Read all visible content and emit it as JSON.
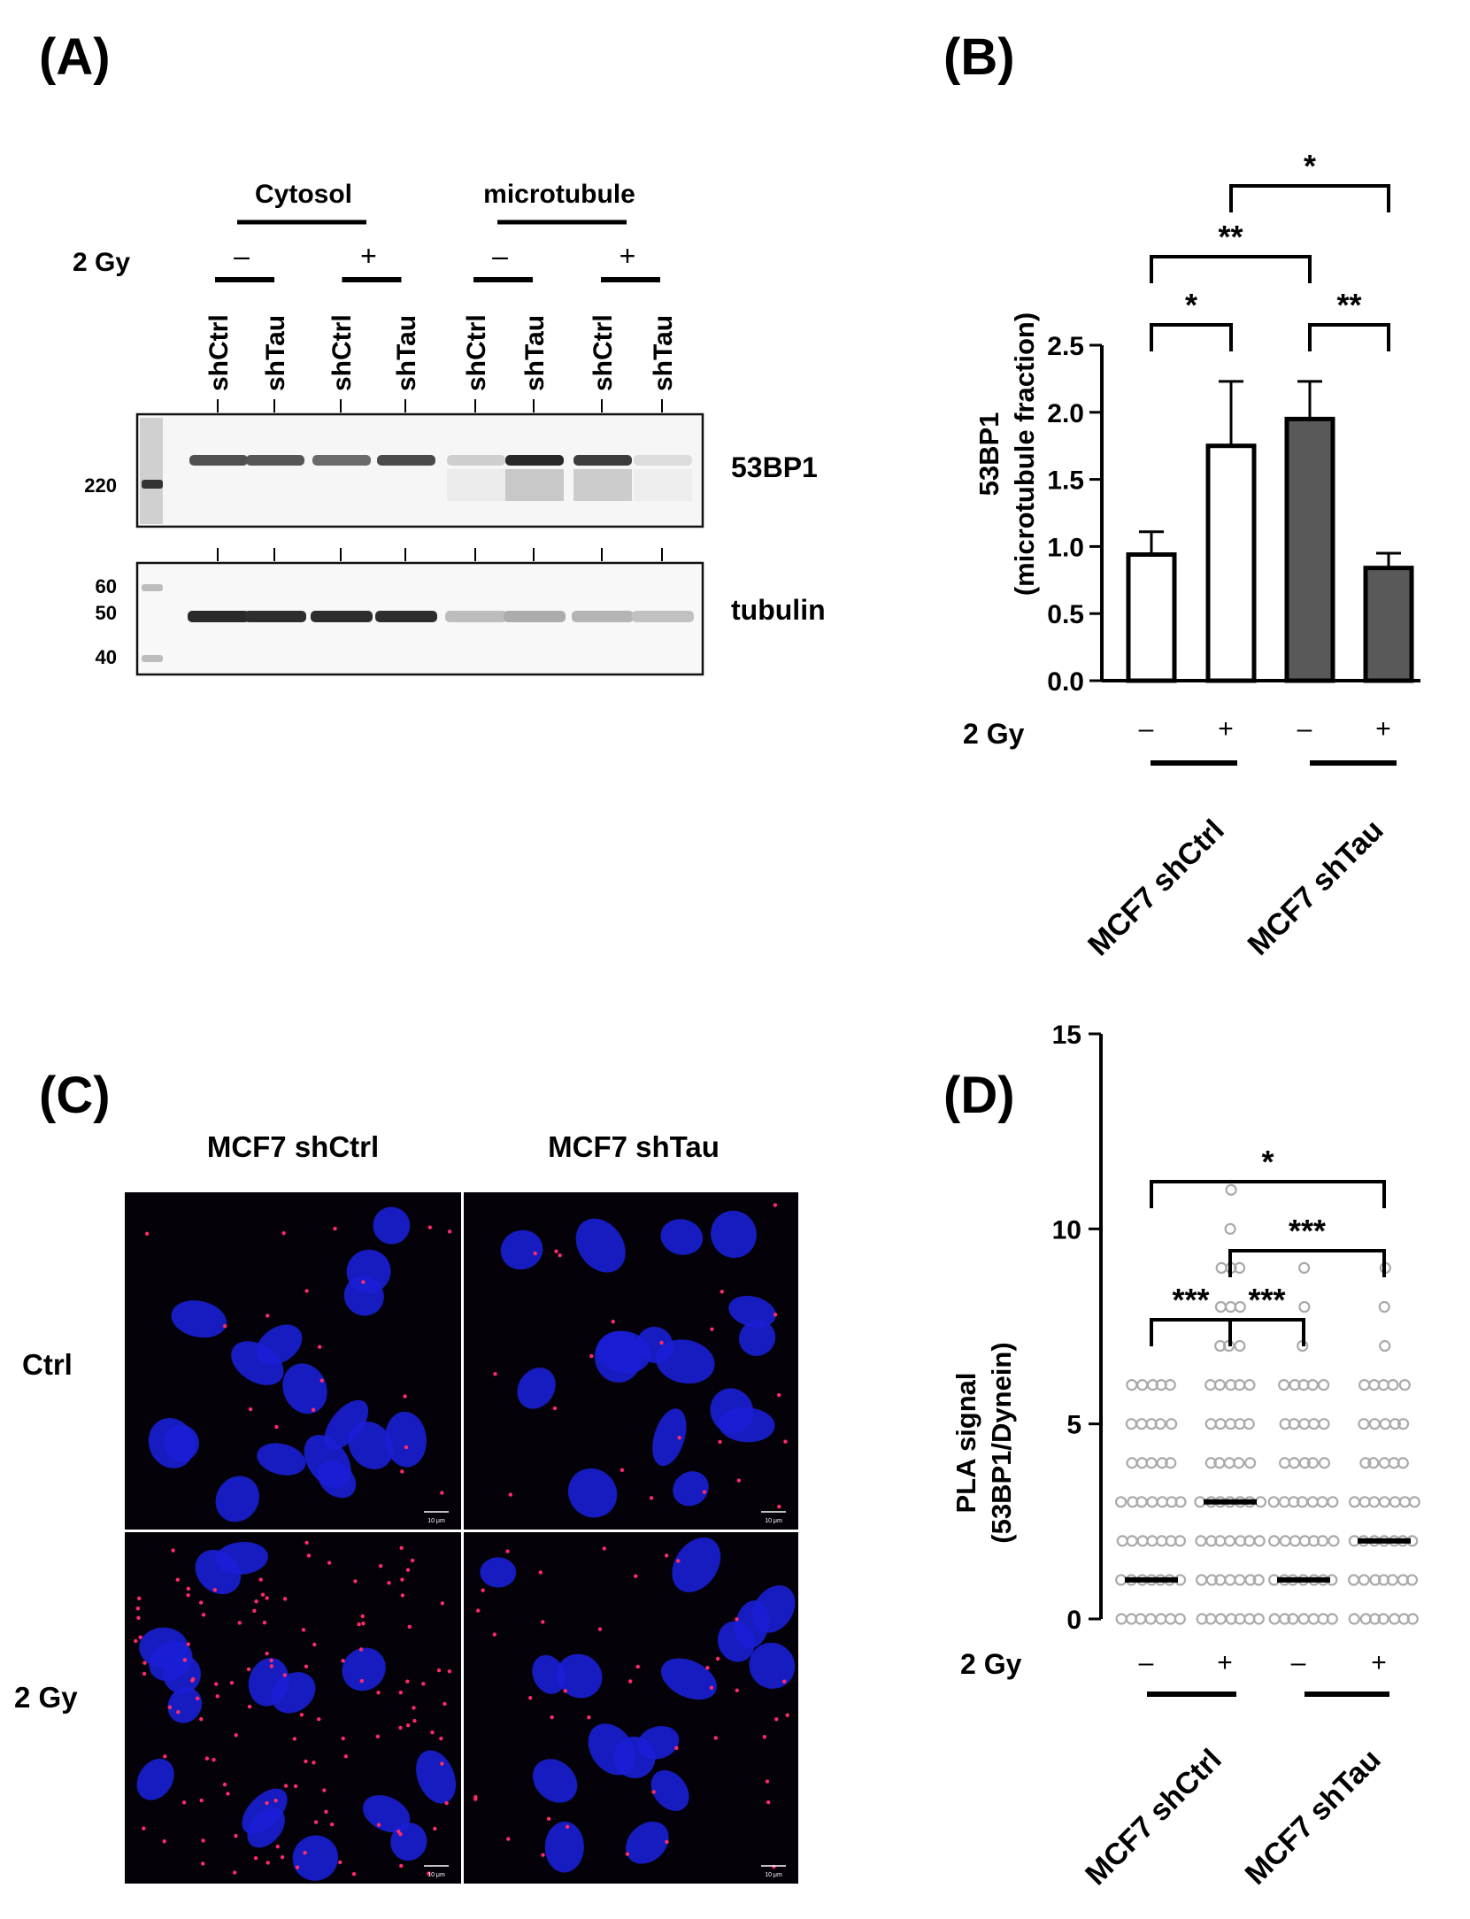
{
  "panels": {
    "A": {
      "label": "(A)",
      "group_cytosol": "Cytosol",
      "group_microtubule": "microtubule",
      "dose_label": "2 Gy",
      "dose_signs": [
        "–",
        "+",
        "–",
        "+"
      ],
      "lanes": [
        "shCtrl",
        "shTau",
        "shCtrl",
        "shTau",
        "shCtrl",
        "shTau",
        "shCtrl",
        "shTau"
      ],
      "blot_top_label": "53BP1",
      "blot_bottom_label": "tubulin",
      "marker_top": [
        "220"
      ],
      "marker_bottom": [
        "60",
        "50",
        "40"
      ],
      "band_intensity_53bp1": [
        0.75,
        0.72,
        0.62,
        0.78,
        0.12,
        0.95,
        0.85,
        0.05
      ],
      "band_intensity_tubulin": [
        0.92,
        0.9,
        0.9,
        0.9,
        0.22,
        0.3,
        0.26,
        0.2
      ]
    },
    "B": {
      "label": "(B)",
      "ylabel_line1": "53BP1",
      "ylabel_line2": "(microtubule fraction)",
      "dose_label": "2 Gy",
      "dose_signs": [
        "–",
        "+",
        "–",
        "+"
      ],
      "group_labels": [
        "MCF7 shCtrl",
        "MCF7 shTau"
      ],
      "significance": [
        {
          "from": 0,
          "to": 1,
          "stars": "*"
        },
        {
          "from": 2,
          "to": 3,
          "stars": "**"
        },
        {
          "from": 0,
          "to": 2,
          "stars": "**"
        },
        {
          "from": 1,
          "to": 3,
          "stars": "*"
        }
      ]
    },
    "C": {
      "label": "(C)",
      "col_labels": [
        "MCF7 shCtrl",
        "MCF7 shTau"
      ],
      "row_labels": [
        "Ctrl",
        "2 Gy"
      ],
      "scale_bar": "10 μm",
      "nucleus_color": "#1a1fd6",
      "pla_dot_color": "#ff2a6a",
      "background_color": "#040208"
    },
    "D": {
      "label": "(D)",
      "ylabel_line1": "PLA signal",
      "ylabel_line2": "(53BP1/Dynein)",
      "dose_label": "2 Gy",
      "dose_signs": [
        "–",
        "+",
        "–",
        "+"
      ],
      "group_labels": [
        "MCF7 shCtrl",
        "MCF7 shTau"
      ],
      "significance": [
        {
          "from": 0,
          "to": 1,
          "stars": "***"
        },
        {
          "from": 1,
          "to": 2,
          "stars": "***"
        },
        {
          "from": 1,
          "to": 3,
          "stars": "***"
        },
        {
          "from": 0,
          "to": 3,
          "stars": "*"
        }
      ]
    }
  },
  "chart_data": [
    {
      "type": "bar",
      "panel": "B",
      "categories": [
        "–",
        "+",
        "–",
        "+"
      ],
      "values": [
        0.94,
        1.75,
        1.95,
        0.84
      ],
      "errors": [
        0.17,
        0.48,
        0.28,
        0.11
      ],
      "bar_colors": [
        "#ffffff",
        "#ffffff",
        "#595959",
        "#595959"
      ],
      "ylim": [
        0,
        2.5
      ],
      "yticks": [
        "0.0",
        "0.5",
        "1.0",
        "1.5",
        "2.0",
        "2.5"
      ]
    },
    {
      "type": "scatter",
      "panel": "D",
      "categories": [
        "–",
        "+",
        "–",
        "+"
      ],
      "medians": [
        1,
        3,
        1,
        2
      ],
      "max_values": [
        6,
        11,
        9,
        9
      ],
      "point_color": "#aaaaaa",
      "ylim": [
        0,
        15
      ],
      "yticks": [
        "0",
        "5",
        "10",
        "15"
      ]
    }
  ]
}
